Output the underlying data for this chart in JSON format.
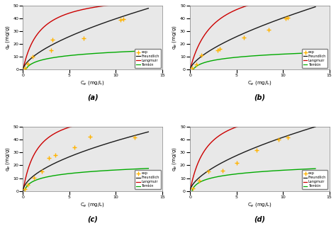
{
  "panels": [
    "(a)",
    "(b)",
    "(c)",
    "(d)"
  ],
  "xlabel": "C$_{e}$ (mg/L)",
  "ylabel": "q$_{e}$ (mg/g)",
  "xlim": [
    0,
    15
  ],
  "ylim": [
    0,
    50
  ],
  "xticks": [
    0,
    5,
    10,
    15
  ],
  "yticks": [
    0,
    10,
    20,
    30,
    40,
    50
  ],
  "exp_color": "#FFB300",
  "freundlich_color": "#1a1a1a",
  "langmuir_color": "#CC0000",
  "temkin_color": "#00AA00",
  "exp_data": {
    "a": {
      "x": [
        0.2,
        0.5,
        1.0,
        3.0,
        3.2,
        6.5,
        10.5,
        10.8
      ],
      "y": [
        1.0,
        4.5,
        10.0,
        15.0,
        23.5,
        24.5,
        39.0,
        39.5
      ]
    },
    "b": {
      "x": [
        0.2,
        0.7,
        1.2,
        3.0,
        3.2,
        5.8,
        8.5,
        10.3,
        10.5
      ],
      "y": [
        1.0,
        4.0,
        11.0,
        15.0,
        16.0,
        25.0,
        31.0,
        40.0,
        40.5
      ]
    },
    "c": {
      "x": [
        0.2,
        0.5,
        1.2,
        2.0,
        2.8,
        3.5,
        5.5,
        7.2,
        12.0
      ],
      "y": [
        1.5,
        5.0,
        10.5,
        15.5,
        26.0,
        28.0,
        34.0,
        42.5,
        42.0
      ]
    },
    "d": {
      "x": [
        0.3,
        1.0,
        2.0,
        3.5,
        5.0,
        7.2,
        9.5,
        10.5
      ],
      "y": [
        2.0,
        8.0,
        15.0,
        16.0,
        22.0,
        32.0,
        40.0,
        41.5
      ]
    }
  },
  "freundlich_params": {
    "a": {
      "Kf": 9.5,
      "n": 0.62
    },
    "b": {
      "Kf": 9.0,
      "n": 0.65
    },
    "c": {
      "Kf": 11.0,
      "n": 0.55
    },
    "d": {
      "Kf": 10.5,
      "n": 0.6
    }
  },
  "langmuir_params": {
    "a": {
      "qmax": 60.0,
      "KL": 0.55
    },
    "b": {
      "qmax": 70.0,
      "KL": 0.4
    },
    "c": {
      "qmax": 65.0,
      "KL": 0.65
    },
    "d": {
      "qmax": 68.0,
      "KL": 0.55
    }
  },
  "temkin_params": {
    "a": {
      "AT": 3.5,
      "bT": 650
    },
    "b": {
      "AT": 3.0,
      "bT": 700
    },
    "c": {
      "AT": 6.0,
      "bT": 620
    },
    "d": {
      "AT": 5.0,
      "bT": 600
    }
  },
  "background_color": "#e8e8e8"
}
